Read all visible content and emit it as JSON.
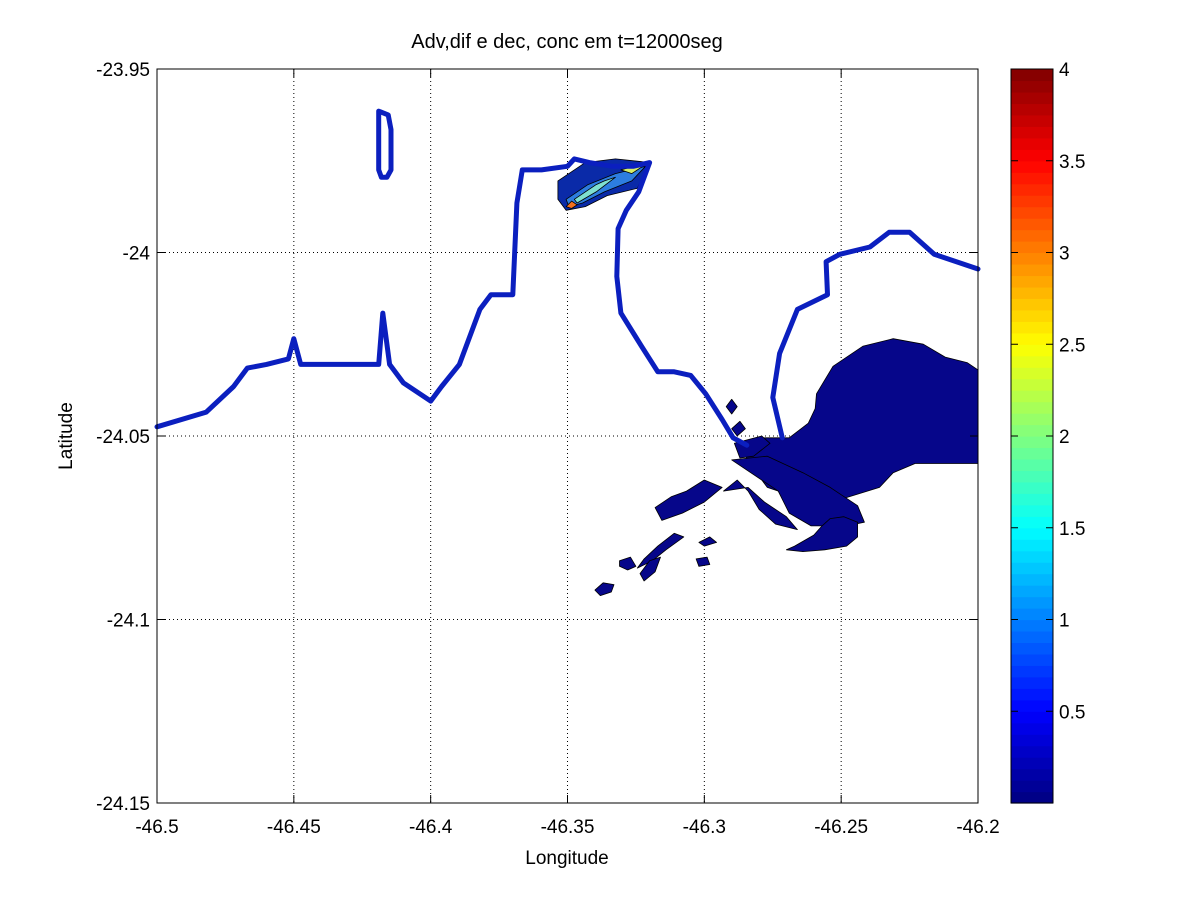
{
  "chart_data": {
    "type": "heatmap",
    "title": "Adv,dif e dec, conc em t=12000seg",
    "xlabel": "Longitude",
    "ylabel": "Latitude",
    "xlim": [
      -46.5,
      -46.2
    ],
    "ylim": [
      -24.15,
      -23.95
    ],
    "xticks": [
      -46.5,
      -46.45,
      -46.4,
      -46.35,
      -46.3,
      -46.25,
      -46.2
    ],
    "yticks": [
      -23.95,
      -24,
      -24.05,
      -24.1,
      -24.15
    ],
    "xtick_labels": [
      "-46.5",
      "-46.45",
      "-46.4",
      "-46.35",
      "-46.3",
      "-46.25",
      "-46.2"
    ],
    "ytick_labels": [
      "-23.95",
      "-24",
      "-24.05",
      "-24.1",
      "-24.15"
    ],
    "grid": true,
    "colormap": "jet",
    "colorbar": {
      "range": [
        0,
        4
      ],
      "ticks": [
        0.5,
        1,
        1.5,
        2,
        2.5,
        3,
        3.5,
        4
      ],
      "tick_labels": [
        "0.5",
        "1",
        "1.5",
        "2",
        "2.5",
        "3",
        "3.5",
        "4"
      ]
    },
    "coastline": {
      "color": "#0b1fbf",
      "main": [
        [
          -46.5,
          -24.0475
        ],
        [
          -46.482,
          -24.0435
        ],
        [
          -46.472,
          -24.0365
        ],
        [
          -46.467,
          -24.0315
        ],
        [
          -46.46,
          -24.0305
        ],
        [
          -46.452,
          -24.029
        ],
        [
          -46.45,
          -24.0235
        ],
        [
          -46.4475,
          -24.0305
        ],
        [
          -46.434,
          -24.0305
        ],
        [
          -46.419,
          -24.0305
        ],
        [
          -46.4175,
          -24.0165
        ],
        [
          -46.415,
          -24.0305
        ],
        [
          -46.41,
          -24.0355
        ],
        [
          -46.4,
          -24.0405
        ],
        [
          -46.396,
          -24.0365
        ],
        [
          -46.3895,
          -24.0305
        ],
        [
          -46.382,
          -24.0155
        ],
        [
          -46.378,
          -24.0115
        ],
        [
          -46.37,
          -24.0115
        ],
        [
          -46.3685,
          -23.9865
        ],
        [
          -46.3665,
          -23.9775
        ],
        [
          -46.3595,
          -23.9775
        ],
        [
          -46.35,
          -23.9765
        ],
        [
          -46.3475,
          -23.9745
        ],
        [
          -46.342,
          -23.9755
        ],
        [
          -46.3335,
          -23.9765
        ],
        [
          -46.326,
          -23.9765
        ],
        [
          -46.32,
          -23.9755
        ],
        [
          -46.324,
          -23.9835
        ],
        [
          -46.3285,
          -23.9885
        ],
        [
          -46.3315,
          -23.9935
        ],
        [
          -46.332,
          -24.0065
        ],
        [
          -46.3305,
          -24.0165
        ],
        [
          -46.323,
          -24.0255
        ],
        [
          -46.317,
          -24.0325
        ],
        [
          -46.311,
          -24.0325
        ],
        [
          -46.305,
          -24.0335
        ],
        [
          -46.2995,
          -24.0385
        ],
        [
          -46.2935,
          -24.0455
        ],
        [
          -46.2895,
          -24.0505
        ],
        [
          -46.2845,
          -24.0525
        ]
      ],
      "east": [
        [
          -46.2715,
          -24.0505
        ],
        [
          -46.275,
          -24.0395
        ],
        [
          -46.2725,
          -24.0275
        ],
        [
          -46.266,
          -24.0155
        ],
        [
          -46.255,
          -24.0115
        ],
        [
          -46.2555,
          -24.0025
        ],
        [
          -46.2505,
          -24.0005
        ],
        [
          -46.2395,
          -23.9985
        ],
        [
          -46.2325,
          -23.9945
        ],
        [
          -46.225,
          -23.9945
        ],
        [
          -46.2205,
          -23.9975
        ],
        [
          -46.216,
          -24.0005
        ],
        [
          -46.2,
          -24.0045
        ]
      ],
      "island": [
        [
          -46.419,
          -23.9615
        ],
        [
          -46.4155,
          -23.9625
        ],
        [
          -46.4145,
          -23.9665
        ],
        [
          -46.4145,
          -23.9775
        ],
        [
          -46.416,
          -23.9795
        ],
        [
          -46.418,
          -23.9795
        ],
        [
          -46.419,
          -23.9775
        ],
        [
          -46.419,
          -23.9615
        ]
      ]
    },
    "plume_upper": {
      "levels": [
        0.25,
        0.75,
        1.5,
        2.5,
        3.5
      ],
      "colors": [
        "#0a2aa8",
        "#2d7de0",
        "#7fe0d0",
        "#d8ef6a",
        "#f07020"
      ],
      "rings": [
        [
          [
            -46.3535,
            -23.9805
          ],
          [
            -46.3435,
            -23.9755
          ],
          [
            -46.3325,
            -23.9745
          ],
          [
            -46.3195,
            -23.9755
          ],
          [
            -46.3245,
            -23.9825
          ],
          [
            -46.3355,
            -23.9845
          ],
          [
            -46.3435,
            -23.9875
          ],
          [
            -46.3505,
            -23.9885
          ],
          [
            -46.3535,
            -23.9855
          ]
        ],
        [
          [
            -46.3505,
            -23.9855
          ],
          [
            -46.3425,
            -23.9815
          ],
          [
            -46.3325,
            -23.9785
          ],
          [
            -46.3215,
            -23.9765
          ],
          [
            -46.3265,
            -23.9805
          ],
          [
            -46.3365,
            -23.9835
          ],
          [
            -46.3445,
            -23.9865
          ],
          [
            -46.3495,
            -23.9875
          ]
        ],
        [
          [
            -46.3475,
            -23.9855
          ],
          [
            -46.3395,
            -23.9815
          ],
          [
            -46.3365,
            -23.9805
          ],
          [
            -46.3325,
            -23.9795
          ],
          [
            -46.3395,
            -23.9835
          ],
          [
            -46.3465,
            -23.9865
          ]
        ],
        [
          [
            -46.3305,
            -23.9775
          ],
          [
            -46.3255,
            -23.9765
          ],
          [
            -46.3225,
            -23.9765
          ],
          [
            -46.3265,
            -23.9785
          ]
        ],
        [
          [
            -46.3505,
            -23.9875
          ],
          [
            -46.3485,
            -23.986
          ],
          [
            -46.3465,
            -23.987
          ],
          [
            -46.3485,
            -23.988
          ]
        ]
      ]
    },
    "plume_main": {
      "color": "#06068a",
      "parts": [
        [
          [
            -46.259,
            -24.0385
          ],
          [
            -46.253,
            -24.031
          ],
          [
            -46.242,
            -24.0255
          ],
          [
            -46.231,
            -24.0235
          ],
          [
            -46.22,
            -24.025
          ],
          [
            -46.212,
            -24.0285
          ],
          [
            -46.204,
            -24.03
          ],
          [
            -46.2,
            -24.032
          ],
          [
            -46.2,
            -24.0575
          ],
          [
            -46.223,
            -24.0575
          ],
          [
            -46.231,
            -24.06
          ],
          [
            -46.236,
            -24.064
          ],
          [
            -46.249,
            -24.067
          ],
          [
            -46.258,
            -24.068
          ],
          [
            -46.269,
            -24.066
          ],
          [
            -46.277,
            -24.064
          ],
          [
            -46.2835,
            -24.0575
          ],
          [
            -46.287,
            -24.0525
          ],
          [
            -46.278,
            -24.0505
          ],
          [
            -46.269,
            -24.0505
          ],
          [
            -46.262,
            -24.0465
          ],
          [
            -46.2595,
            -24.0425
          ]
        ],
        [
          [
            -46.29,
            -24.0565
          ],
          [
            -46.273,
            -24.065
          ],
          [
            -46.269,
            -24.071
          ],
          [
            -46.261,
            -24.0745
          ],
          [
            -46.248,
            -24.0745
          ],
          [
            -46.2415,
            -24.0735
          ],
          [
            -46.244,
            -24.069
          ],
          [
            -46.254,
            -24.064
          ],
          [
            -46.264,
            -24.06
          ],
          [
            -46.277,
            -24.0555
          ]
        ],
        [
          [
            -46.248,
            -24.08
          ],
          [
            -46.244,
            -24.0775
          ],
          [
            -46.244,
            -24.0735
          ],
          [
            -46.249,
            -24.072
          ],
          [
            -46.254,
            -24.0725
          ],
          [
            -46.257,
            -24.0745
          ],
          [
            -46.26,
            -24.077
          ],
          [
            -46.267,
            -24.08
          ],
          [
            -46.27,
            -24.081
          ],
          [
            -46.264,
            -24.0815
          ],
          [
            -46.256,
            -24.081
          ]
        ],
        [
          [
            -46.293,
            -24.065
          ],
          [
            -46.288,
            -24.062
          ],
          [
            -46.284,
            -24.065
          ],
          [
            -46.28,
            -24.07
          ],
          [
            -46.274,
            -24.074
          ],
          [
            -46.266,
            -24.0755
          ],
          [
            -46.27,
            -24.072
          ],
          [
            -46.278,
            -24.068
          ],
          [
            -46.284,
            -24.064
          ]
        ],
        [
          [
            -46.318,
            -24.0695
          ],
          [
            -46.312,
            -24.0665
          ],
          [
            -46.3065,
            -24.065
          ],
          [
            -46.3,
            -24.062
          ],
          [
            -46.2935,
            -24.064
          ],
          [
            -46.3,
            -24.068
          ],
          [
            -46.308,
            -24.071
          ],
          [
            -46.3155,
            -24.073
          ]
        ],
        [
          [
            -46.322,
            -24.0835
          ],
          [
            -46.317,
            -24.08
          ],
          [
            -46.311,
            -24.0765
          ],
          [
            -46.3075,
            -24.0775
          ],
          [
            -46.314,
            -24.081
          ],
          [
            -46.319,
            -24.084
          ],
          [
            -46.3245,
            -24.086
          ]
        ],
        [
          [
            -46.3235,
            -24.0875
          ],
          [
            -46.32,
            -24.084
          ],
          [
            -46.316,
            -24.083
          ],
          [
            -46.318,
            -24.087
          ],
          [
            -46.322,
            -24.0895
          ]
        ],
        [
          [
            -46.34,
            -24.092
          ],
          [
            -46.337,
            -24.09
          ],
          [
            -46.333,
            -24.0905
          ],
          [
            -46.334,
            -24.0925
          ],
          [
            -46.338,
            -24.0935
          ]
        ],
        [
          [
            -46.331,
            -24.084
          ],
          [
            -46.327,
            -24.083
          ],
          [
            -46.325,
            -24.0855
          ],
          [
            -46.328,
            -24.0865
          ],
          [
            -46.331,
            -24.0855
          ]
        ],
        [
          [
            -46.303,
            -24.0835
          ],
          [
            -46.299,
            -24.083
          ],
          [
            -46.298,
            -24.085
          ],
          [
            -46.302,
            -24.0855
          ]
        ],
        [
          [
            -46.302,
            -24.079
          ],
          [
            -46.298,
            -24.0775
          ],
          [
            -46.2955,
            -24.079
          ],
          [
            -46.3,
            -24.08
          ]
        ],
        [
          [
            -46.29,
            -24.048
          ],
          [
            -46.287,
            -24.046
          ],
          [
            -46.285,
            -24.048
          ],
          [
            -46.288,
            -24.05
          ]
        ],
        [
          [
            -46.292,
            -24.042
          ],
          [
            -46.29,
            -24.04
          ],
          [
            -46.288,
            -24.042
          ],
          [
            -46.29,
            -24.044
          ]
        ],
        [
          [
            -46.289,
            -24.052
          ],
          [
            -46.279,
            -24.05
          ],
          [
            -46.276,
            -24.052
          ],
          [
            -46.282,
            -24.0555
          ],
          [
            -46.287,
            -24.056
          ]
        ]
      ]
    }
  }
}
